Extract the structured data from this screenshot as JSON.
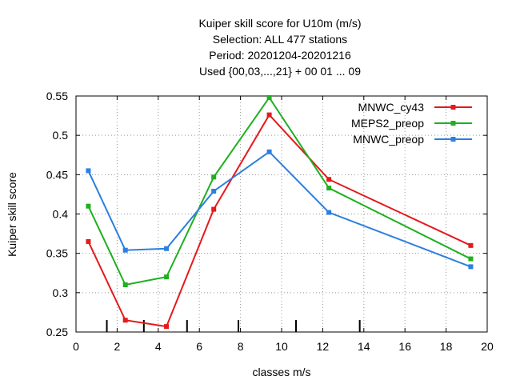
{
  "chart_data": {
    "type": "line",
    "title_lines": [
      "Kuiper skill score  for U10m (m/s)",
      "Selection: ALL    477 stations",
      "Period: 20201204-20201216",
      "Used {00,03,...,21} + 00 01 ... 09"
    ],
    "xlabel": "classes m/s",
    "ylabel": "Kuiper skill score",
    "xlim": [
      0,
      20
    ],
    "ylim": [
      0.25,
      0.55
    ],
    "xticks": [
      0,
      2,
      4,
      6,
      8,
      10,
      12,
      14,
      16,
      18,
      20
    ],
    "xtick_labels": [
      "0",
      "2",
      "4",
      "6",
      "8",
      "10",
      "12",
      "14",
      "16",
      "18",
      "20"
    ],
    "yticks": [
      0.25,
      0.3,
      0.35,
      0.4,
      0.45,
      0.5,
      0.55
    ],
    "ytick_labels": [
      "0.25",
      "0.3",
      "0.35",
      "0.4",
      "0.45",
      "0.5",
      "0.55"
    ],
    "grid": true,
    "legend_position": "top-right",
    "class_boundaries": [
      1.5,
      3.3,
      5.4,
      7.9,
      10.7,
      13.8
    ],
    "x": [
      0.6,
      2.4,
      4.4,
      6.7,
      9.4,
      12.3,
      19.2
    ],
    "series": [
      {
        "name": "MNWC_cy43",
        "color": "#e41a1c",
        "values": [
          0.365,
          0.265,
          0.257,
          0.406,
          0.526,
          0.444,
          0.36
        ]
      },
      {
        "name": "MEPS2_preop",
        "color": "#1fb01f",
        "values": [
          0.41,
          0.31,
          0.32,
          0.447,
          0.548,
          0.433,
          0.343
        ]
      },
      {
        "name": "MNWC_preop",
        "color": "#2b7fe0",
        "values": [
          0.455,
          0.354,
          0.356,
          0.429,
          0.479,
          0.402,
          0.333
        ]
      }
    ]
  }
}
